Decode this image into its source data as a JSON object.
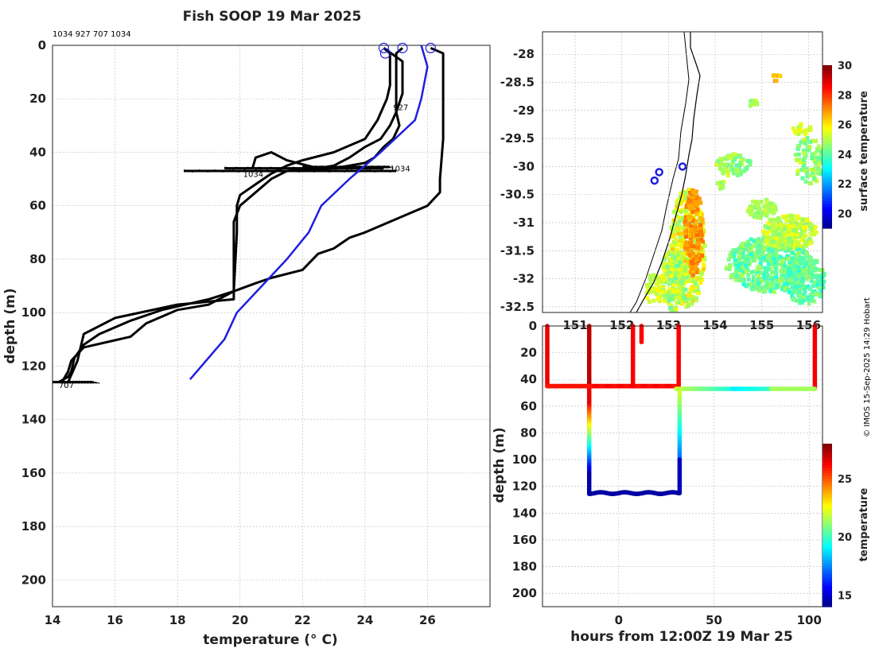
{
  "title": "Fish SOOP 19 Mar 2025",
  "profile_ids_label": "1034 927 707 1034",
  "credit": "© IMOS 15-Sep-2025 14:29 Hobart",
  "chart_data": [
    {
      "type": "line",
      "name": "depth-temperature-profiles",
      "xlabel": "temperature (° C)",
      "ylabel": "depth (m)",
      "xlim": [
        14,
        28
      ],
      "ylim": [
        210,
        0
      ],
      "xticks": [
        "14",
        "16",
        "18",
        "20",
        "22",
        "24",
        "26"
      ],
      "yticks": [
        "0",
        "20",
        "40",
        "60",
        "80",
        "100",
        "120",
        "140",
        "160",
        "180",
        "200"
      ],
      "profile_labels": [
        {
          "text": "927",
          "x": 24.9,
          "y": 23
        },
        {
          "text": "1034",
          "x": 20.1,
          "y": 48
        },
        {
          "text": "1034",
          "x": 24.8,
          "y": 46
        },
        {
          "text": "707",
          "x": 14.2,
          "y": 127
        }
      ],
      "series": [
        {
          "name": "1034",
          "color": "#000000",
          "x": [
            26.1,
            26.5,
            26.5,
            26.5,
            26.4,
            26.4,
            26.0,
            25.4,
            25.0,
            24.0,
            23.5,
            23.0,
            22.5,
            22.0,
            21.0,
            20.5,
            19.8,
            19.0,
            18.0,
            17.0,
            16.5,
            15.0,
            14.6,
            14.5,
            14.3
          ],
          "y": [
            1,
            3,
            20,
            35,
            50,
            55,
            60,
            63,
            65,
            70,
            72,
            76,
            78,
            84,
            87,
            89,
            92,
            97,
            99,
            104,
            109,
            113,
            118,
            122,
            126
          ]
        },
        {
          "name": "927",
          "color": "#000000",
          "x": [
            25.2,
            25.0,
            25.0,
            25.0,
            25.0,
            25.1,
            24.9,
            24.6,
            24.3,
            24.0,
            23.5,
            23.0,
            22.0,
            21.5,
            21.0,
            20.5,
            20.0,
            19.8,
            19.8,
            19.8,
            18.0,
            16.0,
            15.0,
            14.8,
            14.5
          ],
          "y": [
            1,
            3,
            10,
            20,
            25,
            30,
            35,
            38,
            42,
            44,
            45,
            46,
            46.5,
            47,
            50,
            55,
            60,
            66,
            80,
            95,
            97,
            102,
            108,
            118,
            126
          ]
        },
        {
          "name": "707",
          "color": "#000000",
          "x": [
            24.6,
            24.8,
            24.8,
            24.8,
            24.7,
            24.4,
            24.0,
            23.0,
            22.0,
            21.5,
            21.0,
            20.5,
            20.0,
            19.9,
            19.9,
            19.8,
            19.0,
            17.5,
            16.5,
            15.5,
            15.0,
            14.7,
            14.6,
            14.5,
            14.2
          ],
          "y": [
            1,
            3,
            8,
            15,
            20,
            28,
            35,
            40,
            43,
            45,
            48,
            52,
            56,
            60,
            70,
            92,
            95,
            99,
            103,
            108,
            112,
            117,
            122,
            124,
            126
          ]
        },
        {
          "name": "1034b",
          "color": "#000000",
          "x": [
            24.6,
            25.2,
            25.2,
            25.2,
            25.0,
            24.8,
            24.5,
            24.0,
            23.5,
            23.0,
            22.5,
            21.5,
            21.0,
            20.5,
            20.4
          ],
          "y": [
            1,
            6,
            12,
            18,
            25,
            30,
            35,
            38,
            42,
            45,
            46,
            43,
            40,
            42,
            46
          ]
        },
        {
          "name": "climatology",
          "color": "#1f1fe0",
          "x": [
            25.8,
            26.0,
            25.8,
            25.6,
            24.5,
            23.5,
            22.6,
            22.2,
            21.5,
            20.7,
            19.9,
            19.5,
            18.4
          ],
          "y": [
            0,
            8,
            20,
            28,
            40,
            50,
            60,
            70,
            80,
            90,
            100,
            110,
            125
          ]
        }
      ],
      "spike_lines": [
        {
          "x1": 18.2,
          "x2": 25.0,
          "y": 47
        },
        {
          "x1": 19.5,
          "x2": 24.6,
          "y": 46
        },
        {
          "x1": 22.0,
          "x2": 24.8,
          "y": 45.5
        },
        {
          "x1": 14.0,
          "x2": 15.3,
          "y": 126
        }
      ],
      "start_markers": [
        {
          "x": 24.6,
          "y": 1
        },
        {
          "x": 25.2,
          "y": 1
        },
        {
          "x": 26.1,
          "y": 1
        },
        {
          "x": 24.65,
          "y": 3
        }
      ]
    },
    {
      "type": "heatmap",
      "name": "surface-temperature-map",
      "colorbar_label": "surface temperature",
      "colorbar_range": [
        19,
        30
      ],
      "colorbar_ticks": [
        "20",
        "22",
        "24",
        "26",
        "28",
        "30"
      ],
      "lat_ticks": [
        "-28",
        "-28.5",
        "-29",
        "-29.5",
        "-30",
        "-30.5",
        "-31",
        "-31.5",
        "-32",
        "-32.5"
      ],
      "lon_ticks": [
        "151",
        "152",
        "153",
        "154",
        "155",
        "156"
      ],
      "lat_range": [
        -32.6,
        -27.6
      ],
      "lon_range": [
        150.3,
        156.3
      ],
      "stations": [
        {
          "lon": 153.3,
          "lat": -30.0
        },
        {
          "lon": 152.8,
          "lat": -30.1
        },
        {
          "lon": 152.7,
          "lat": -30.25
        }
      ]
    },
    {
      "type": "scatter",
      "name": "depth-time-section",
      "xlabel": "hours from 12:00Z 19 Mar 25",
      "ylabel": "depth (m)",
      "colorbar_label": "temperature",
      "colorbar_range": [
        14,
        28
      ],
      "colorbar_ticks": [
        "15",
        "20",
        "25"
      ],
      "xticks": [
        "0",
        "50",
        "100"
      ],
      "yticks": [
        "0",
        "20",
        "40",
        "60",
        "80",
        "100",
        "120",
        "140",
        "160",
        "180",
        "200"
      ],
      "xlim": [
        -40,
        107
      ],
      "ylim": [
        210,
        0
      ]
    }
  ]
}
